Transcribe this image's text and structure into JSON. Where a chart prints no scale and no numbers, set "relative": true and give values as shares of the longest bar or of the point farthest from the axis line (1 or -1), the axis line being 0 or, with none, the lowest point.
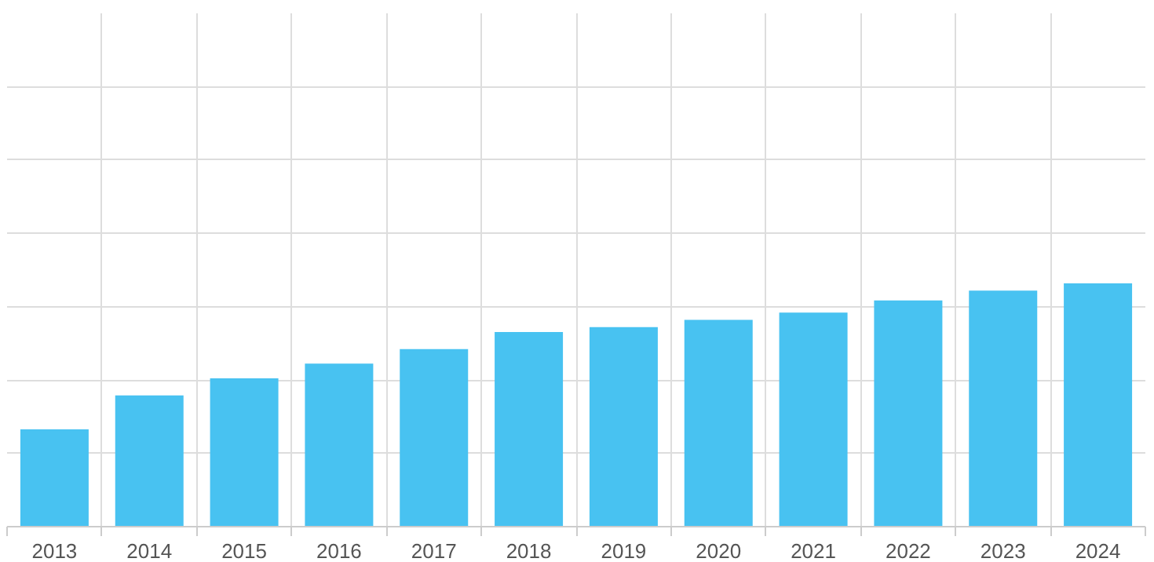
{
  "chart_data": {
    "type": "bar",
    "relative": true,
    "grid": true,
    "color": "#48c2f1",
    "categories": [
      "2013",
      "2014",
      "2015",
      "2016",
      "2017",
      "2018",
      "2019",
      "2020",
      "2021",
      "2022",
      "2023",
      "2024"
    ],
    "values": [
      0.4,
      0.54,
      0.61,
      0.67,
      0.73,
      0.8,
      0.82,
      0.85,
      0.88,
      0.93,
      0.97,
      1.0
    ]
  }
}
